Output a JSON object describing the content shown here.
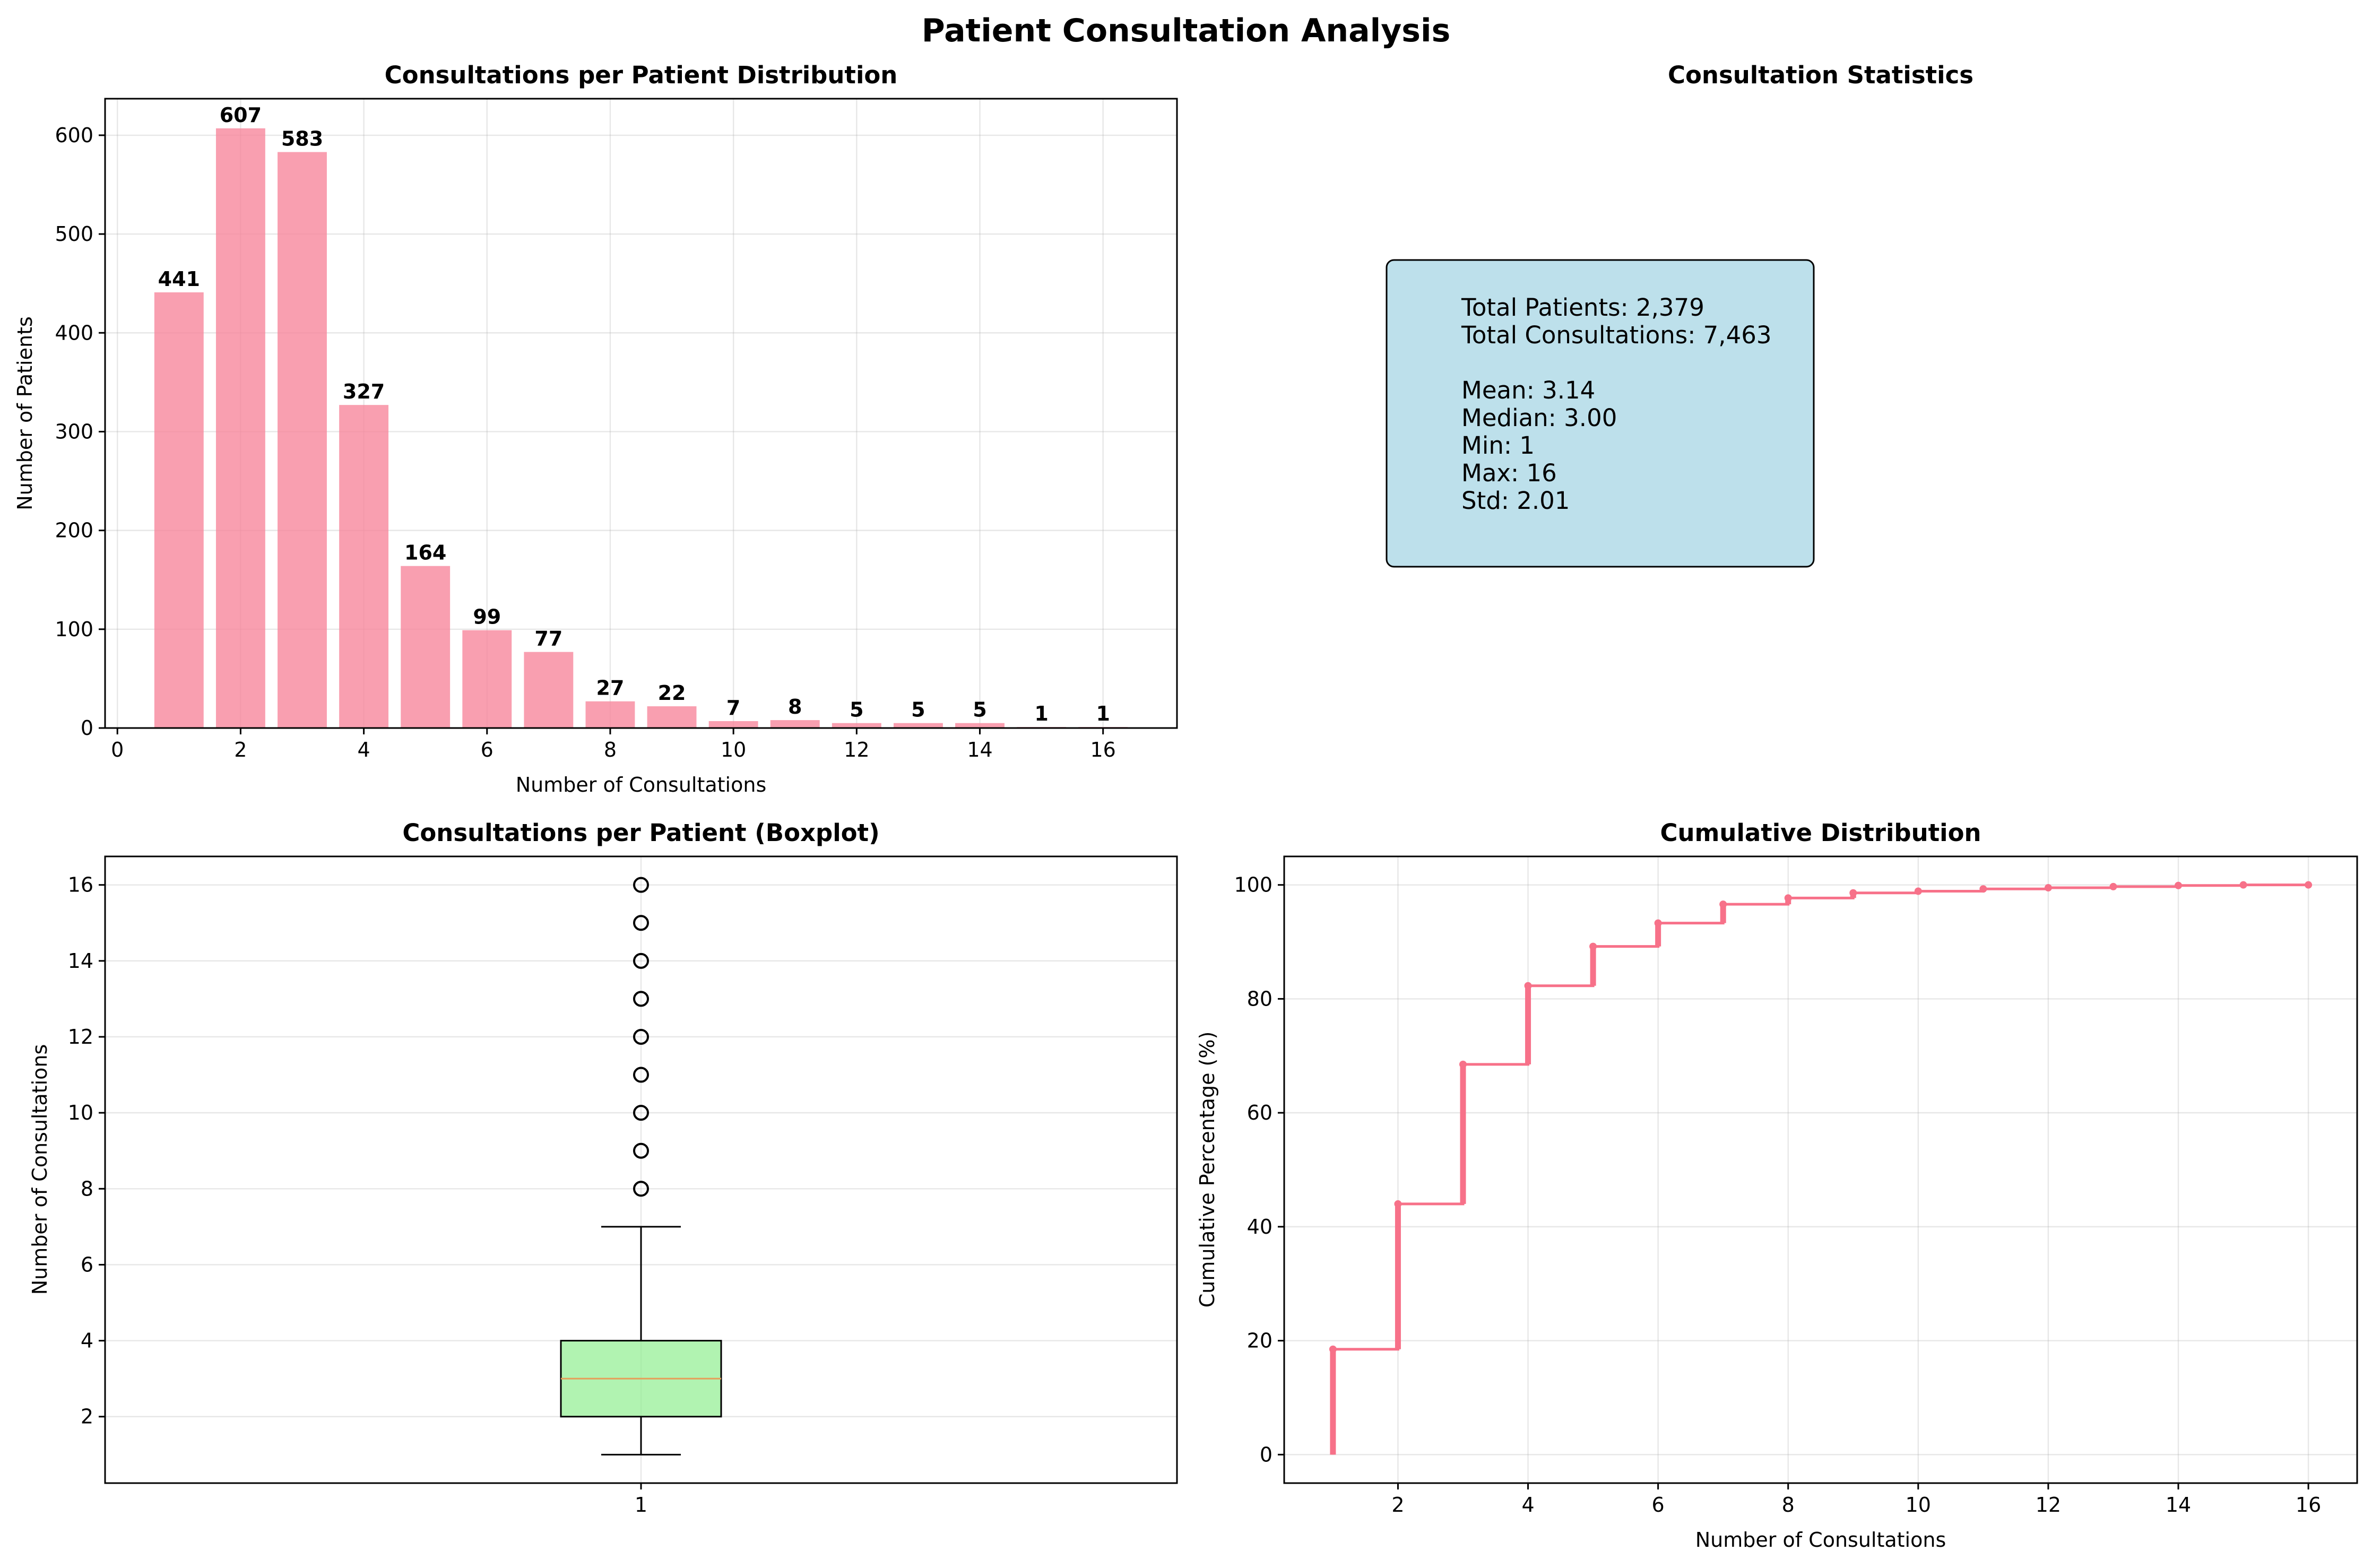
{
  "figure": {
    "title": "Patient Consultation Analysis"
  },
  "colors": {
    "bar": "#f7879c",
    "line": "#f77189",
    "box_fill": "#90ee90",
    "median": "#e69f5a",
    "stats_box": "#add8e6"
  },
  "chart_data": [
    {
      "id": "histogram",
      "type": "bar",
      "title": "Consultations per Patient Distribution",
      "xlabel": "Number of Consultations",
      "ylabel": "Number of Patients",
      "x": [
        1,
        2,
        3,
        4,
        5,
        6,
        7,
        8,
        9,
        10,
        11,
        12,
        13,
        14,
        15,
        16
      ],
      "values": [
        441,
        607,
        583,
        327,
        164,
        99,
        77,
        27,
        22,
        7,
        8,
        5,
        5,
        5,
        1,
        1
      ],
      "data_labels": [
        "441",
        "607",
        "583",
        "327",
        "164",
        "99",
        "77",
        "27",
        "22",
        "7",
        "8",
        "5",
        "5",
        "5",
        "1",
        "1"
      ],
      "xlim": [
        -0.2,
        17.2
      ],
      "ylim": [
        0,
        637
      ],
      "xticks": [
        0,
        2,
        4,
        6,
        8,
        10,
        12,
        14,
        16
      ],
      "yticks": [
        0,
        100,
        200,
        300,
        400,
        500,
        600
      ],
      "grid": true
    },
    {
      "id": "stats",
      "type": "table",
      "title": "Consultation Statistics",
      "lines": [
        "Total Patients: 2,379",
        "Total Consultations: 7,463",
        "",
        "Mean: 3.14",
        "Median: 3.00",
        "Min: 1",
        "Max: 16",
        "Std: 2.01"
      ]
    },
    {
      "id": "boxplot",
      "type": "boxplot",
      "title": "Consultations per Patient (Boxplot)",
      "ylabel": "Number of Consultations",
      "category": "1",
      "whisker_low": 1,
      "q1": 2,
      "median": 3,
      "q3": 4,
      "whisker_high": 7,
      "outliers": [
        8,
        9,
        10,
        11,
        12,
        13,
        14,
        15,
        16
      ],
      "ylim": [
        0.25,
        16.75
      ],
      "yticks": [
        2,
        4,
        6,
        8,
        10,
        12,
        14,
        16
      ],
      "grid": true
    },
    {
      "id": "cdf",
      "type": "line",
      "title": "Cumulative Distribution",
      "xlabel": "Number of Consultations",
      "ylabel": "Cumulative Percentage (%)",
      "x": [
        1,
        2,
        3,
        4,
        5,
        6,
        7,
        8,
        9,
        10,
        11,
        12,
        13,
        14,
        15,
        16
      ],
      "y": [
        18.5,
        44.0,
        68.5,
        82.3,
        89.2,
        93.3,
        96.6,
        97.7,
        98.6,
        98.9,
        99.3,
        99.5,
        99.7,
        99.9,
        100.0,
        100.0
      ],
      "xlim": [
        0.25,
        16.75
      ],
      "ylim": [
        -5,
        105
      ],
      "xticks": [
        2,
        4,
        6,
        8,
        10,
        12,
        14,
        16
      ],
      "yticks": [
        0,
        20,
        40,
        60,
        80,
        100
      ],
      "grid": true
    }
  ]
}
